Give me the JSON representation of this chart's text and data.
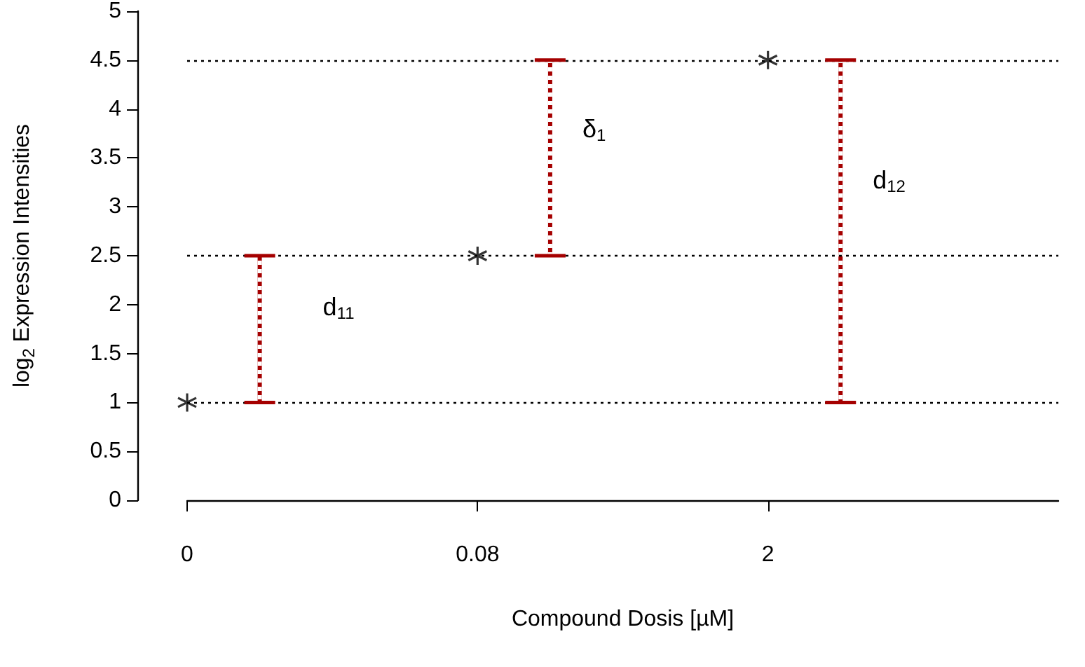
{
  "chart_data": {
    "type": "scatter",
    "xlabel": "Compound Dosis [µM]",
    "ylabel": "log$_{2}$ Expression Intensities",
    "categories": [
      "0",
      null,
      null,
      null,
      "0.08",
      null,
      null,
      null,
      "2",
      null,
      null,
      null,
      null
    ],
    "ylim": [
      0,
      5
    ],
    "yticks": [
      0,
      0.5,
      1,
      1.5,
      2,
      2.5,
      3,
      3.5,
      4,
      4.5,
      5
    ],
    "series": [
      {
        "color": "#000000",
        "marker": "cross",
        "x": [
          "0",
          "0.08",
          "2"
        ],
        "values": [
          1,
          2.5,
          4.5
        ]
      },
      {
        "type": "bar",
        "color": "#a50000",
        "line_style": "dotted",
        "values": [
          null,
          1.5,
          null,
          null,
          null,
          2,
          null,
          null,
          null,
          3.5,
          null,
          null,
          null
        ],
        "base": [
          null,
          1,
          null,
          null,
          null,
          2.5,
          null,
          null,
          null,
          1,
          null,
          null,
          null
        ]
      }
    ],
    "ref_lines": [
      {
        "axis": "y",
        "value": 1,
        "color": "#000000",
        "line_style": "dotted"
      },
      {
        "axis": "y",
        "value": 2.5,
        "color": "#000000",
        "line_style": "dotted"
      },
      {
        "axis": "y",
        "value": 4.5,
        "color": "#000000",
        "line_style": "dotted"
      }
    ],
    "annotations": [
      "d$_{11}$",
      "δ$_{1}$",
      "d$_{12}$"
    ],
    "grid": false
  }
}
